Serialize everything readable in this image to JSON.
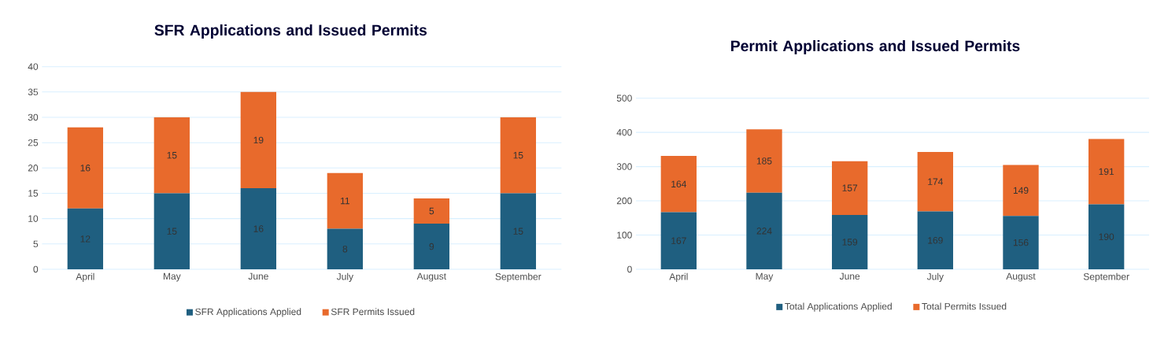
{
  "chart_data": [
    {
      "type": "bar",
      "title": "SFR Applications and Issued Permits",
      "stacked": true,
      "categories": [
        "April",
        "May",
        "June",
        "July",
        "August",
        "September"
      ],
      "series": [
        {
          "name": "SFR Applications Applied",
          "color": "#1f5f80",
          "values": [
            12,
            15,
            16,
            8,
            9,
            15
          ]
        },
        {
          "name": "SFR Permits Issued",
          "color": "#e86a2c",
          "values": [
            16,
            15,
            19,
            11,
            5,
            15
          ]
        }
      ],
      "ylim": [
        0,
        40
      ],
      "yticks": [
        0,
        5,
        10,
        15,
        20,
        25,
        30,
        35,
        40
      ],
      "grid": "y",
      "legend": "bottom",
      "data_labels": true
    },
    {
      "type": "bar",
      "title": "Permit Applications and Issued Permits",
      "stacked": true,
      "categories": [
        "April",
        "May",
        "June",
        "July",
        "August",
        "September"
      ],
      "series": [
        {
          "name": "Total Applications Applied",
          "color": "#1f5f80",
          "values": [
            167,
            224,
            159,
            169,
            156,
            190
          ]
        },
        {
          "name": "Total Permits Issued",
          "color": "#e86a2c",
          "values": [
            164,
            185,
            157,
            174,
            149,
            191
          ]
        }
      ],
      "ylim": [
        0,
        500
      ],
      "yticks": [
        0,
        100,
        200,
        300,
        400,
        500
      ],
      "grid": "y",
      "legend": "bottom",
      "data_labels": true
    }
  ]
}
